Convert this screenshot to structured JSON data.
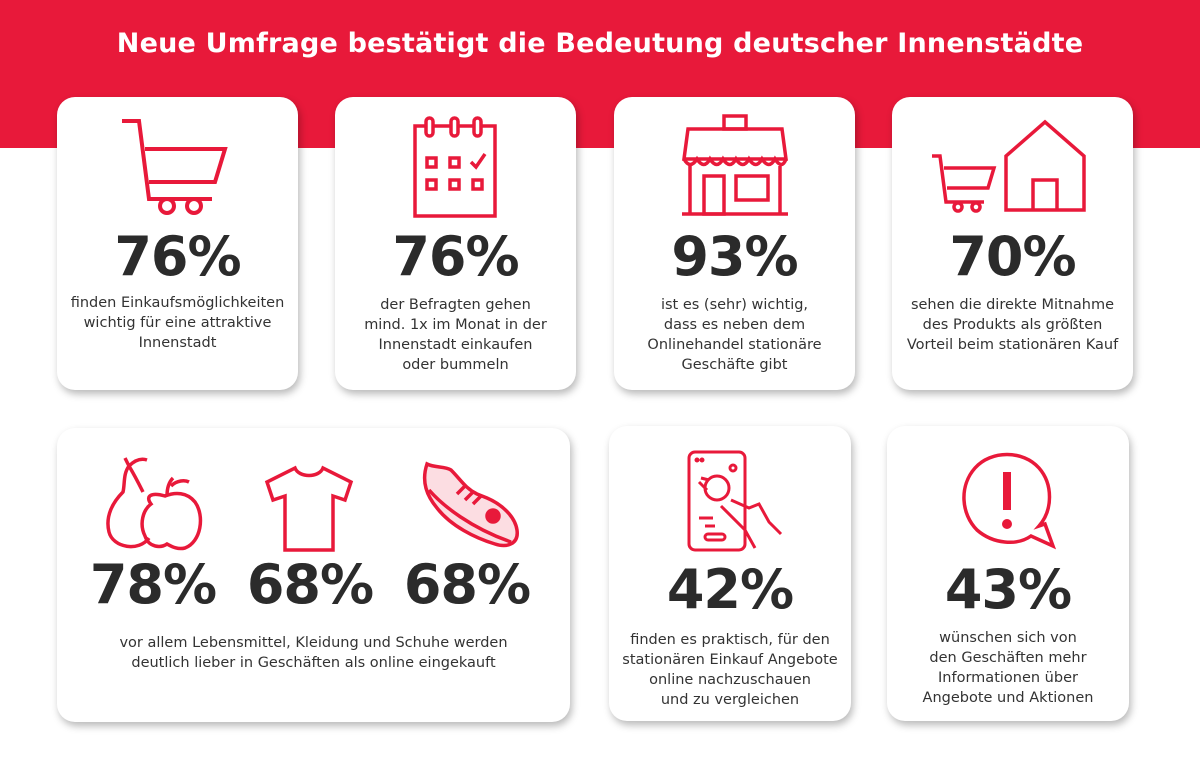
{
  "title": "Neue Umfrage bestätigt die Bedeutung deutscher Innenstädte",
  "colors": {
    "accent": "#e8193a",
    "text": "#2b2b2b"
  },
  "stats": [
    {
      "icon": "shopping-cart-icon",
      "value": "76%",
      "text": "finden Einkaufsmöglichkeiten\nwichtig für eine attraktive\nInnenstadt"
    },
    {
      "icon": "calendar-check-icon",
      "value": "76%",
      "text": "der Befragten gehen\nmind. 1x im Monat in der\nInnenstadt einkaufen\noder bummeln"
    },
    {
      "icon": "storefront-icon",
      "value": "93%",
      "text": "ist es (sehr) wichtig,\ndass es neben dem\nOnlinehandel stationäre\nGeschäfte gibt"
    },
    {
      "icon": "cart-and-house-icon",
      "value": "70%",
      "text": "sehen die direkte Mitnahme\ndes Produkts als größten\nVorteil beim stationären Kauf"
    }
  ],
  "categories": {
    "items": [
      {
        "icon": "fruit-icon",
        "value": "78%"
      },
      {
        "icon": "tshirt-icon",
        "value": "68%"
      },
      {
        "icon": "sneaker-icon",
        "value": "68%"
      }
    ],
    "text": "vor allem Lebensmittel, Kleidung und Schuhe werden\ndeutlich lieber in Geschäften als online eingekauft"
  },
  "stats2": [
    {
      "icon": "smartphone-tap-icon",
      "value": "42%",
      "text": "finden es praktisch, für den\nstationären Einkauf Angebote\nonline nachzuschauen\nund zu vergleichen"
    },
    {
      "icon": "exclamation-speech-bubble-icon",
      "value": "43%",
      "text": "wünschen sich von\nden Geschäften mehr\nInformationen über\nAngebote und Aktionen"
    }
  ]
}
